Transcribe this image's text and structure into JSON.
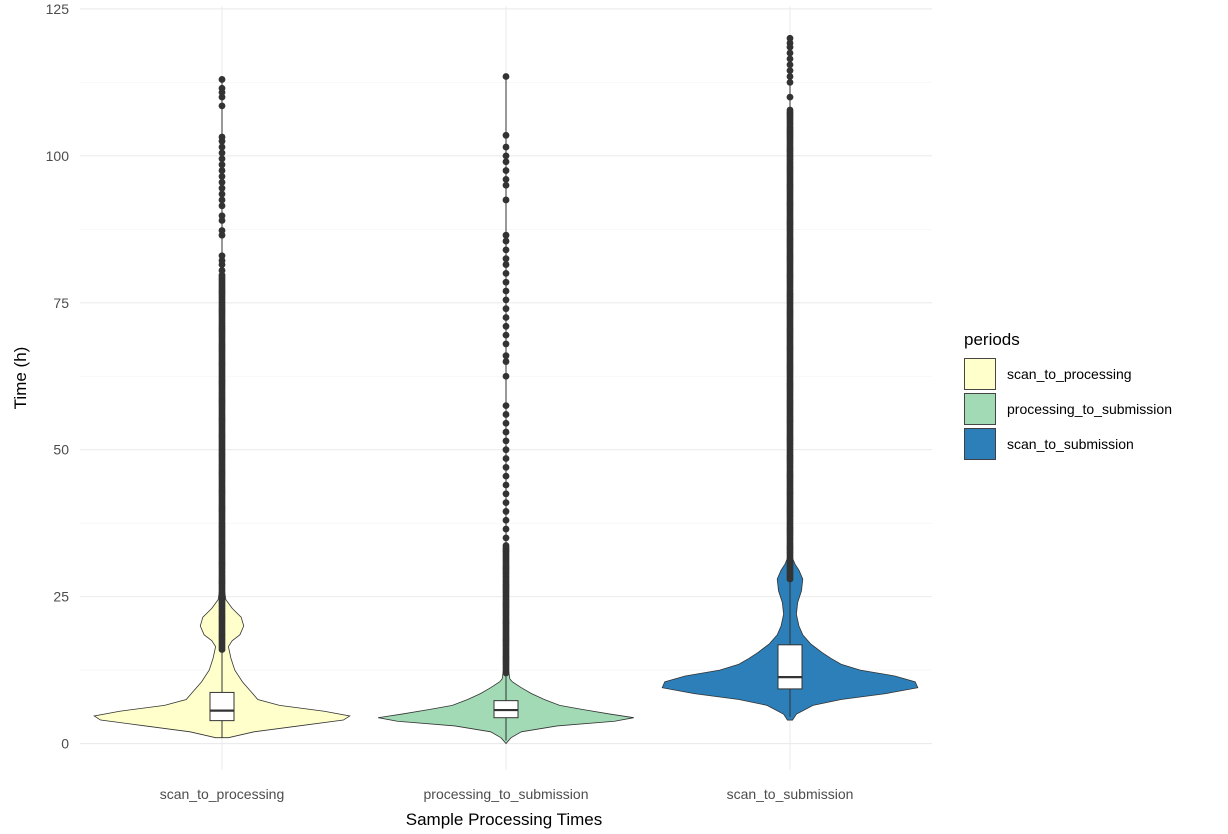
{
  "chart_data": {
    "type": "violin",
    "xlabel": "Sample Processing Times",
    "ylabel": "Time (h)",
    "ylim": [
      -4.5,
      125.5
    ],
    "y_ticks": [
      0,
      25,
      50,
      75,
      100,
      125
    ],
    "y_tick_labels": [
      "0",
      "25",
      "50",
      "75",
      "100",
      "125"
    ],
    "grid": true,
    "legend": {
      "title": "periods",
      "position": "right",
      "entries": [
        {
          "label": "scan_to_processing",
          "color": "#ffffcc"
        },
        {
          "label": "processing_to_submission",
          "color": "#a1dab4"
        },
        {
          "label": "scan_to_submission",
          "color": "#2c7fb8"
        }
      ]
    },
    "categories": [
      "scan_to_processing",
      "processing_to_submission",
      "scan_to_submission"
    ],
    "series": [
      {
        "name": "scan_to_processing",
        "color": "#ffffcc",
        "box": {
          "whisker_low": 1.0,
          "q1": 3.9,
          "median": 5.6,
          "q3": 8.7,
          "whisker_high": 16.0
        },
        "max": 113.0,
        "dense_outliers_to": 80.0,
        "outliers": [
          80.5,
          81.5,
          82.2,
          83.0,
          86.5,
          87.3,
          89.0,
          89.8,
          91.5,
          92.5,
          93.5,
          94.5,
          95.5,
          96.5,
          97.5,
          98.5,
          99.5,
          100.5,
          101.5,
          102.5,
          103.2,
          108.5,
          110.0,
          110.8,
          111.5,
          113.0
        ],
        "density": [
          [
            1.0,
            0.05
          ],
          [
            2.0,
            0.25
          ],
          [
            3.0,
            0.6
          ],
          [
            4.0,
            0.95
          ],
          [
            4.7,
            1.0
          ],
          [
            5.5,
            0.8
          ],
          [
            6.5,
            0.45
          ],
          [
            7.5,
            0.28
          ],
          [
            9.0,
            0.22
          ],
          [
            10.5,
            0.16
          ],
          [
            12.5,
            0.1
          ],
          [
            14.5,
            0.07
          ],
          [
            16.5,
            0.05
          ],
          [
            17.5,
            0.08
          ],
          [
            18.5,
            0.14
          ],
          [
            20.0,
            0.17
          ],
          [
            21.5,
            0.15
          ],
          [
            23.0,
            0.08
          ],
          [
            24.5,
            0.03
          ],
          [
            26.0,
            0.02
          ]
        ]
      },
      {
        "name": "processing_to_submission",
        "color": "#a1dab4",
        "box": {
          "whisker_low": 0.5,
          "q1": 4.4,
          "median": 5.7,
          "q3": 7.3,
          "whisker_high": 12.0
        },
        "max": 113.5,
        "dense_outliers_to": 34.0,
        "outliers": [
          35.0,
          36.5,
          38.0,
          39.5,
          41.0,
          42.5,
          44.0,
          45.5,
          47.0,
          48.5,
          50.0,
          51.5,
          53.0,
          54.5,
          56.0,
          57.5,
          62.5,
          65.0,
          66.0,
          68.0,
          69.5,
          71.0,
          72.5,
          74.0,
          75.5,
          77.0,
          78.5,
          80.0,
          81.5,
          82.5,
          84.0,
          85.5,
          86.5,
          92.5,
          95.0,
          96.0,
          97.5,
          99.0,
          100.0,
          101.5,
          103.5,
          113.5
        ],
        "density": [
          [
            0.0,
            0.0
          ],
          [
            1.0,
            0.04
          ],
          [
            2.0,
            0.12
          ],
          [
            3.0,
            0.4
          ],
          [
            3.8,
            0.85
          ],
          [
            4.4,
            1.0
          ],
          [
            5.0,
            0.82
          ],
          [
            5.8,
            0.6
          ],
          [
            6.5,
            0.42
          ],
          [
            7.5,
            0.3
          ],
          [
            8.5,
            0.2
          ],
          [
            9.5,
            0.12
          ],
          [
            10.5,
            0.05
          ],
          [
            11.0,
            0.03
          ],
          [
            12.5,
            0.02
          ],
          [
            13.5,
            0.0
          ]
        ]
      },
      {
        "name": "scan_to_submission",
        "color": "#2c7fb8",
        "box": {
          "whisker_low": 4.5,
          "q1": 9.3,
          "median": 11.3,
          "q3": 16.8,
          "whisker_high": 28.0
        },
        "max": 120.0,
        "dense_outliers_to": 108.0,
        "outliers": [
          110.0,
          112.5,
          113.5,
          114.5,
          115.5,
          116.5,
          117.5,
          118.5,
          119.2,
          120.0
        ],
        "density": [
          [
            4.0,
            0.02
          ],
          [
            5.0,
            0.05
          ],
          [
            6.5,
            0.18
          ],
          [
            7.5,
            0.4
          ],
          [
            8.5,
            0.75
          ],
          [
            9.5,
            1.0
          ],
          [
            10.5,
            0.98
          ],
          [
            11.5,
            0.82
          ],
          [
            12.5,
            0.55
          ],
          [
            13.5,
            0.4
          ],
          [
            14.5,
            0.32
          ],
          [
            15.5,
            0.25
          ],
          [
            17.0,
            0.16
          ],
          [
            18.5,
            0.1
          ],
          [
            20.0,
            0.07
          ],
          [
            22.0,
            0.05
          ],
          [
            24.0,
            0.06
          ],
          [
            26.0,
            0.09
          ],
          [
            28.0,
            0.1
          ],
          [
            29.5,
            0.07
          ],
          [
            30.5,
            0.04
          ],
          [
            31.5,
            0.02
          ]
        ]
      }
    ]
  }
}
